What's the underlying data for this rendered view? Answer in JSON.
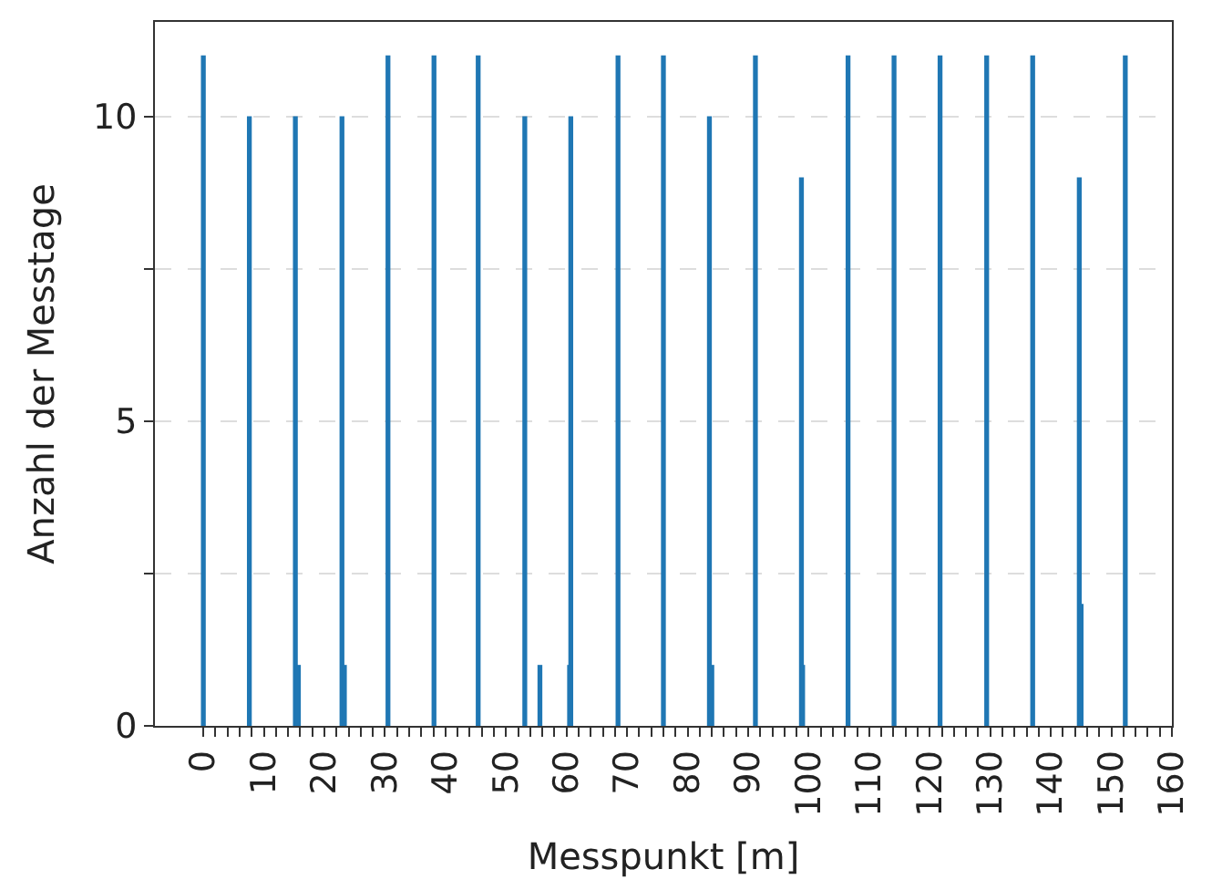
{
  "chart_data": {
    "type": "bar",
    "xlabel": "Messpunkt [m]",
    "ylabel": "Anzahl der Messtage",
    "series": [
      {
        "color": "#1f77b4",
        "x": [
          0,
          7.6,
          15.2,
          22.9,
          30.5,
          38.1,
          45.4,
          53.1,
          60.7,
          68.5,
          76,
          83.6,
          91.2,
          98.8,
          106.5,
          114.1,
          121.7,
          129.4,
          137,
          144.7,
          152.3
        ],
        "values": [
          11,
          10,
          10,
          10,
          11,
          11,
          11,
          10,
          10,
          11,
          11,
          10,
          11,
          9,
          11,
          11,
          11,
          11,
          11,
          9,
          11
        ]
      },
      {
        "color": "#1f77b4",
        "x": [
          15.7,
          23.3,
          55.6,
          60.5,
          84.0,
          99.0,
          145.0
        ],
        "values": [
          1,
          1,
          1,
          1,
          1,
          1,
          2
        ]
      }
    ],
    "xlim": [
      -8,
      160
    ],
    "xticks": [
      0,
      {
        "value": 2,
        "label": null
      },
      {
        "value": 4,
        "label": null
      },
      {
        "value": 6,
        "label": null
      },
      {
        "value": 8,
        "label": null
      },
      10,
      {
        "value": 12,
        "label": null
      },
      {
        "value": 14,
        "label": null
      },
      {
        "value": 16,
        "label": null
      },
      {
        "value": 18,
        "label": null
      },
      20,
      {
        "value": 22,
        "label": null
      },
      {
        "value": 24,
        "label": null
      },
      {
        "value": 26,
        "label": null
      },
      {
        "value": 28,
        "label": null
      },
      30,
      {
        "value": 32,
        "label": null
      },
      {
        "value": 34,
        "label": null
      },
      {
        "value": 36,
        "label": null
      },
      {
        "value": 38,
        "label": null
      },
      40,
      {
        "value": 42,
        "label": null
      },
      {
        "value": 44,
        "label": null
      },
      {
        "value": 46,
        "label": null
      },
      {
        "value": 48,
        "label": null
      },
      50,
      {
        "value": 52,
        "label": null
      },
      {
        "value": 54,
        "label": null
      },
      {
        "value": 56,
        "label": null
      },
      {
        "value": 58,
        "label": null
      },
      60,
      {
        "value": 62,
        "label": null
      },
      {
        "value": 64,
        "label": null
      },
      {
        "value": 66,
        "label": null
      },
      {
        "value": 68,
        "label": null
      },
      70,
      {
        "value": 72,
        "label": null
      },
      {
        "value": 74,
        "label": null
      },
      {
        "value": 76,
        "label": null
      },
      {
        "value": 78,
        "label": null
      },
      80,
      {
        "value": 82,
        "label": null
      },
      {
        "value": 84,
        "label": null
      },
      {
        "value": 86,
        "label": null
      },
      {
        "value": 88,
        "label": null
      },
      90,
      {
        "value": 92,
        "label": null
      },
      {
        "value": 94,
        "label": null
      },
      {
        "value": 96,
        "label": null
      },
      {
        "value": 98,
        "label": null
      },
      100,
      {
        "value": 102,
        "label": null
      },
      {
        "value": 104,
        "label": null
      },
      {
        "value": 106,
        "label": null
      },
      {
        "value": 108,
        "label": null
      },
      110,
      {
        "value": 112,
        "label": null
      },
      {
        "value": 114,
        "label": null
      },
      {
        "value": 116,
        "label": null
      },
      {
        "value": 118,
        "label": null
      },
      120,
      {
        "value": 122,
        "label": null
      },
      {
        "value": 124,
        "label": null
      },
      {
        "value": 126,
        "label": null
      },
      {
        "value": 128,
        "label": null
      },
      130,
      {
        "value": 132,
        "label": null
      },
      {
        "value": 134,
        "label": null
      },
      {
        "value": 136,
        "label": null
      },
      {
        "value": 138,
        "label": null
      },
      140,
      {
        "value": 142,
        "label": null
      },
      {
        "value": 144,
        "label": null
      },
      {
        "value": 146,
        "label": null
      },
      {
        "value": 148,
        "label": null
      },
      150,
      {
        "value": 152,
        "label": null
      },
      {
        "value": 154,
        "label": null
      },
      {
        "value": 156,
        "label": null
      },
      {
        "value": 158,
        "label": null
      },
      160
    ],
    "ylim": [
      0,
      11.55
    ],
    "yticks": [
      0,
      {
        "value": 2.5,
        "label": null
      },
      5,
      {
        "value": 7.5,
        "label": null
      },
      10
    ],
    "grid": "y"
  }
}
